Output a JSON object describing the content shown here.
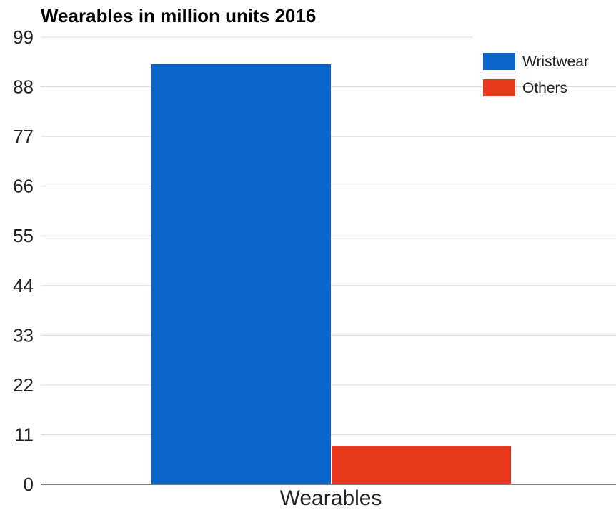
{
  "chart_data": {
    "type": "bar",
    "title": "Wearables in million units 2016",
    "xlabel": "",
    "ylabel": "",
    "categories": [
      "Wearables"
    ],
    "series": [
      {
        "name": "Wristwear",
        "values": [
          93
        ],
        "color": "#0a66c8"
      },
      {
        "name": "Others",
        "values": [
          8.5
        ],
        "color": "#e8381e"
      }
    ],
    "ylim": [
      0,
      99
    ],
    "yticks": [
      "0",
      "11",
      "22",
      "33",
      "44",
      "55",
      "66",
      "77",
      "88",
      "99"
    ],
    "grid": true,
    "legend_position": "top-right"
  }
}
